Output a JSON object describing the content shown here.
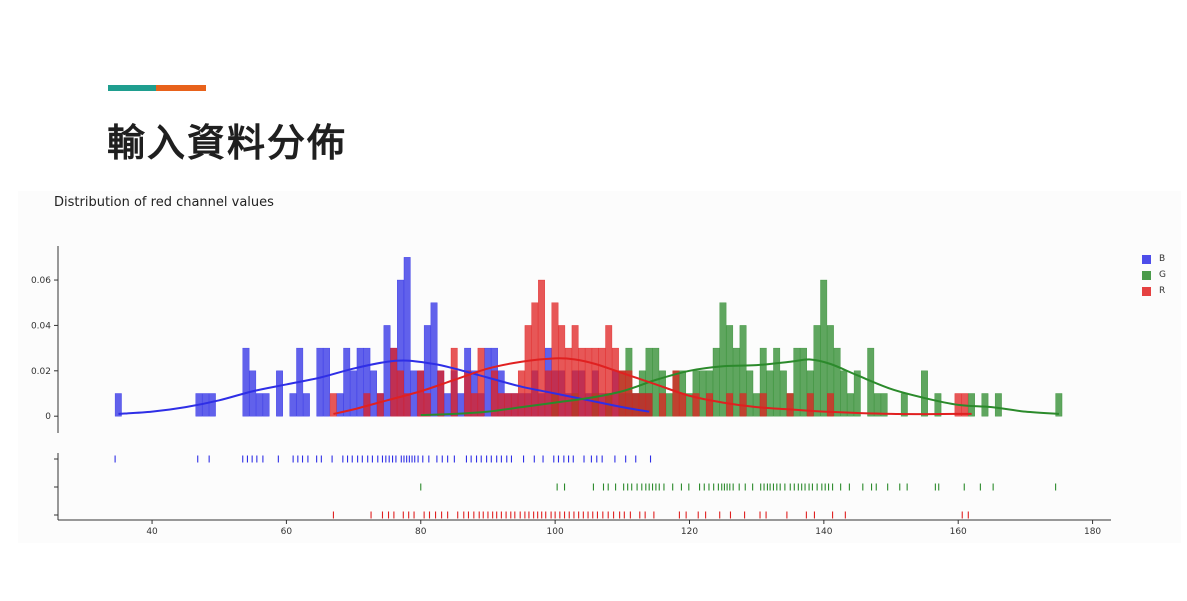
{
  "slide": {
    "title": "輸入資料分佈",
    "accent_colors": [
      "#1f9e8f",
      "#e8621b"
    ]
  },
  "chart_data": {
    "type": "bar",
    "title": "Distribution of red channel values",
    "xlabel": "",
    "ylabel": "",
    "xlim": [
      26,
      182
    ],
    "ylim": [
      -0.003,
      0.075
    ],
    "x_ticks": [
      40,
      60,
      80,
      100,
      120,
      140,
      160,
      180
    ],
    "y_ticks": [
      0,
      0.02,
      0.04,
      0.06
    ],
    "y_tick_labels": [
      "0",
      "0.02",
      "0.04",
      "0.06"
    ],
    "grid": false,
    "legend_position": "top-right",
    "bin_width": 1,
    "series": [
      {
        "name": "B",
        "color": "#2e2ee6",
        "histogram": [
          [
            35,
            0.01
          ],
          [
            47,
            0.01
          ],
          [
            48,
            0.01
          ],
          [
            49,
            0.01
          ],
          [
            54,
            0.03
          ],
          [
            55,
            0.02
          ],
          [
            56,
            0.01
          ],
          [
            57,
            0.01
          ],
          [
            59,
            0.02
          ],
          [
            61,
            0.01
          ],
          [
            62,
            0.03
          ],
          [
            63,
            0.01
          ],
          [
            65,
            0.03
          ],
          [
            66,
            0.03
          ],
          [
            68,
            0.01
          ],
          [
            69,
            0.03
          ],
          [
            70,
            0.02
          ],
          [
            71,
            0.03
          ],
          [
            72,
            0.03
          ],
          [
            73,
            0.02
          ],
          [
            74,
            0.01
          ],
          [
            75,
            0.04
          ],
          [
            76,
            0.03
          ],
          [
            77,
            0.06
          ],
          [
            78,
            0.07
          ],
          [
            79,
            0.02
          ],
          [
            80,
            0.02
          ],
          [
            81,
            0.04
          ],
          [
            82,
            0.05
          ],
          [
            83,
            0.02
          ],
          [
            84,
            0.01
          ],
          [
            85,
            0.02
          ],
          [
            86,
            0.01
          ],
          [
            87,
            0.03
          ],
          [
            88,
            0.02
          ],
          [
            89,
            0.01
          ],
          [
            90,
            0.03
          ],
          [
            91,
            0.03
          ],
          [
            92,
            0.02
          ],
          [
            93,
            0.01
          ],
          [
            94,
            0.01
          ],
          [
            95,
            0.01
          ],
          [
            96,
            0.01
          ],
          [
            97,
            0.02
          ],
          [
            98,
            0.01
          ],
          [
            99,
            0.03
          ],
          [
            100,
            0.02
          ],
          [
            101,
            0.02
          ],
          [
            102,
            0.01
          ],
          [
            103,
            0.02
          ],
          [
            104,
            0.02
          ],
          [
            105,
            0.01
          ],
          [
            106,
            0.02
          ],
          [
            107,
            0.01
          ],
          [
            108,
            0.01
          ],
          [
            109,
            0.02
          ],
          [
            110,
            0.01
          ],
          [
            111,
            0.01
          ],
          [
            112,
            0.01
          ],
          [
            113,
            0.01
          ],
          [
            114,
            0.01
          ]
        ],
        "kde": [
          [
            35,
            0.001
          ],
          [
            40,
            0.002
          ],
          [
            45,
            0.004
          ],
          [
            50,
            0.007
          ],
          [
            55,
            0.011
          ],
          [
            60,
            0.014
          ],
          [
            65,
            0.017
          ],
          [
            70,
            0.021
          ],
          [
            75,
            0.024
          ],
          [
            78,
            0.0245
          ],
          [
            82,
            0.023
          ],
          [
            85,
            0.021
          ],
          [
            90,
            0.017
          ],
          [
            95,
            0.013
          ],
          [
            100,
            0.01
          ],
          [
            105,
            0.007
          ],
          [
            110,
            0.004
          ],
          [
            114,
            0.002
          ]
        ],
        "rug": [
          34.5,
          46.8,
          48.5,
          53.5,
          54.2,
          54.9,
          55.6,
          56.5,
          58.8,
          61,
          61.7,
          62.4,
          63.2,
          64.5,
          65.2,
          66.8,
          68.4,
          69.1,
          69.8,
          70.6,
          71.3,
          72.1,
          72.8,
          73.6,
          74.3,
          74.8,
          75.3,
          75.8,
          76.3,
          77.1,
          77.5,
          77.9,
          78.3,
          78.7,
          79.1,
          79.6,
          80.3,
          81.2,
          82.4,
          83.2,
          84,
          85,
          86.8,
          87.5,
          88.3,
          89,
          89.8,
          90.5,
          91.3,
          92,
          92.8,
          93.5,
          95.3,
          96.9,
          98.2,
          99.8,
          100.5,
          101.3,
          102,
          102.7,
          104.3,
          105.4,
          106.2,
          107,
          108.9,
          110.5,
          112,
          114.2
        ]
      },
      {
        "name": "G",
        "color": "#2b8a2b",
        "histogram": [
          [
            100,
            0.01
          ],
          [
            103,
            0.01
          ],
          [
            106,
            0.01
          ],
          [
            108,
            0.01
          ],
          [
            110,
            0.02
          ],
          [
            111,
            0.03
          ],
          [
            112,
            0.01
          ],
          [
            113,
            0.02
          ],
          [
            114,
            0.03
          ],
          [
            115,
            0.03
          ],
          [
            116,
            0.02
          ],
          [
            117,
            0.01
          ],
          [
            118,
            0.02
          ],
          [
            119,
            0.02
          ],
          [
            120,
            0.01
          ],
          [
            121,
            0.02
          ],
          [
            122,
            0.02
          ],
          [
            123,
            0.02
          ],
          [
            124,
            0.03
          ],
          [
            125,
            0.05
          ],
          [
            126,
            0.04
          ],
          [
            127,
            0.03
          ],
          [
            128,
            0.04
          ],
          [
            129,
            0.02
          ],
          [
            130,
            0.01
          ],
          [
            131,
            0.03
          ],
          [
            132,
            0.02
          ],
          [
            133,
            0.03
          ],
          [
            134,
            0.02
          ],
          [
            135,
            0.01
          ],
          [
            136,
            0.03
          ],
          [
            137,
            0.03
          ],
          [
            138,
            0.02
          ],
          [
            139,
            0.04
          ],
          [
            140,
            0.06
          ],
          [
            141,
            0.04
          ],
          [
            142,
            0.03
          ],
          [
            143,
            0.02
          ],
          [
            144,
            0.01
          ],
          [
            145,
            0.02
          ],
          [
            147,
            0.03
          ],
          [
            148,
            0.01
          ],
          [
            149,
            0.01
          ],
          [
            152,
            0.01
          ],
          [
            155,
            0.02
          ],
          [
            157,
            0.01
          ],
          [
            162,
            0.01
          ],
          [
            164,
            0.01
          ],
          [
            166,
            0.01
          ],
          [
            175,
            0.01
          ]
        ],
        "kde": [
          [
            80,
            0.0005
          ],
          [
            85,
            0.001
          ],
          [
            90,
            0.002
          ],
          [
            95,
            0.004
          ],
          [
            100,
            0.006
          ],
          [
            105,
            0.008
          ],
          [
            110,
            0.011
          ],
          [
            115,
            0.016
          ],
          [
            120,
            0.02
          ],
          [
            125,
            0.022
          ],
          [
            130,
            0.0225
          ],
          [
            135,
            0.024
          ],
          [
            138,
            0.025
          ],
          [
            141,
            0.023
          ],
          [
            145,
            0.018
          ],
          [
            150,
            0.012
          ],
          [
            155,
            0.008
          ],
          [
            160,
            0.005
          ],
          [
            165,
            0.004
          ],
          [
            170,
            0.002
          ],
          [
            175,
            0.001
          ]
        ],
        "rug": [
          80,
          100.3,
          101.4,
          105.7,
          107.2,
          107.9,
          109,
          110.2,
          110.8,
          111.4,
          112.2,
          112.9,
          113.5,
          114,
          114.5,
          115,
          115.5,
          116.2,
          117.5,
          118.8,
          119.9,
          121.5,
          122.2,
          122.9,
          123.6,
          124.3,
          124.8,
          125.2,
          125.6,
          126,
          126.5,
          127.4,
          128.3,
          129.4,
          130.6,
          131.1,
          131.6,
          132,
          132.5,
          133,
          133.5,
          134.2,
          135,
          135.6,
          136.2,
          136.7,
          137.2,
          137.8,
          138.3,
          139,
          139.7,
          140.2,
          140.7,
          141.3,
          142.5,
          143.8,
          145.8,
          147.1,
          147.8,
          149.5,
          151.3,
          152.4,
          156.6,
          157.1,
          160.9,
          163.3,
          165.2,
          174.5
        ]
      },
      {
        "name": "R",
        "color": "#e02020",
        "histogram": [
          [
            67,
            0.01
          ],
          [
            72,
            0.01
          ],
          [
            74,
            0.01
          ],
          [
            76,
            0.03
          ],
          [
            77,
            0.02
          ],
          [
            78,
            0.01
          ],
          [
            80,
            0.02
          ],
          [
            81,
            0.01
          ],
          [
            83,
            0.02
          ],
          [
            85,
            0.03
          ],
          [
            87,
            0.02
          ],
          [
            88,
            0.01
          ],
          [
            89,
            0.03
          ],
          [
            91,
            0.02
          ],
          [
            92,
            0.01
          ],
          [
            93,
            0.01
          ],
          [
            94,
            0.01
          ],
          [
            95,
            0.02
          ],
          [
            96,
            0.04
          ],
          [
            97,
            0.05
          ],
          [
            98,
            0.06
          ],
          [
            99,
            0.02
          ],
          [
            100,
            0.05
          ],
          [
            101,
            0.04
          ],
          [
            102,
            0.03
          ],
          [
            103,
            0.04
          ],
          [
            104,
            0.03
          ],
          [
            105,
            0.03
          ],
          [
            106,
            0.03
          ],
          [
            107,
            0.03
          ],
          [
            108,
            0.04
          ],
          [
            109,
            0.03
          ],
          [
            110,
            0.02
          ],
          [
            111,
            0.02
          ],
          [
            112,
            0.01
          ],
          [
            113,
            0.01
          ],
          [
            114,
            0.01
          ],
          [
            116,
            0.01
          ],
          [
            118,
            0.02
          ],
          [
            119,
            0.01
          ],
          [
            121,
            0.01
          ],
          [
            123,
            0.01
          ],
          [
            126,
            0.01
          ],
          [
            128,
            0.01
          ],
          [
            131,
            0.01
          ],
          [
            135,
            0.01
          ],
          [
            138,
            0.01
          ],
          [
            141,
            0.01
          ],
          [
            160,
            0.01
          ],
          [
            161,
            0.01
          ]
        ],
        "kde": [
          [
            67,
            0.001
          ],
          [
            70,
            0.003
          ],
          [
            75,
            0.007
          ],
          [
            80,
            0.011
          ],
          [
            85,
            0.016
          ],
          [
            90,
            0.021
          ],
          [
            95,
            0.024
          ],
          [
            100,
            0.0255
          ],
          [
            103,
            0.025
          ],
          [
            106,
            0.023
          ],
          [
            110,
            0.019
          ],
          [
            115,
            0.014
          ],
          [
            120,
            0.009
          ],
          [
            125,
            0.006
          ],
          [
            130,
            0.004
          ],
          [
            135,
            0.003
          ],
          [
            140,
            0.002
          ],
          [
            150,
            0.001
          ],
          [
            160,
            0.001
          ],
          [
            162,
            0.001
          ]
        ],
        "rug": [
          67,
          72.6,
          74.3,
          75.2,
          76,
          77.4,
          78.2,
          79,
          80.5,
          81.3,
          82.2,
          83.1,
          84,
          85.5,
          86.4,
          87.1,
          87.9,
          88.7,
          89.3,
          90,
          90.7,
          91.3,
          92,
          92.7,
          93.4,
          94,
          94.8,
          95.5,
          96.1,
          96.8,
          97.4,
          98,
          98.6,
          99.4,
          100,
          100.7,
          101.4,
          102.1,
          102.8,
          103.5,
          104.2,
          104.9,
          105.6,
          106.3,
          107.1,
          107.9,
          108.7,
          109.6,
          110.3,
          111.2,
          112.6,
          113.4,
          114.7,
          118.5,
          119.5,
          121.3,
          122.4,
          124.5,
          126.1,
          128.2,
          130.5,
          131.4,
          134.5,
          137.4,
          138.6,
          141.3,
          143.2,
          160.6,
          161.5
        ]
      }
    ]
  }
}
